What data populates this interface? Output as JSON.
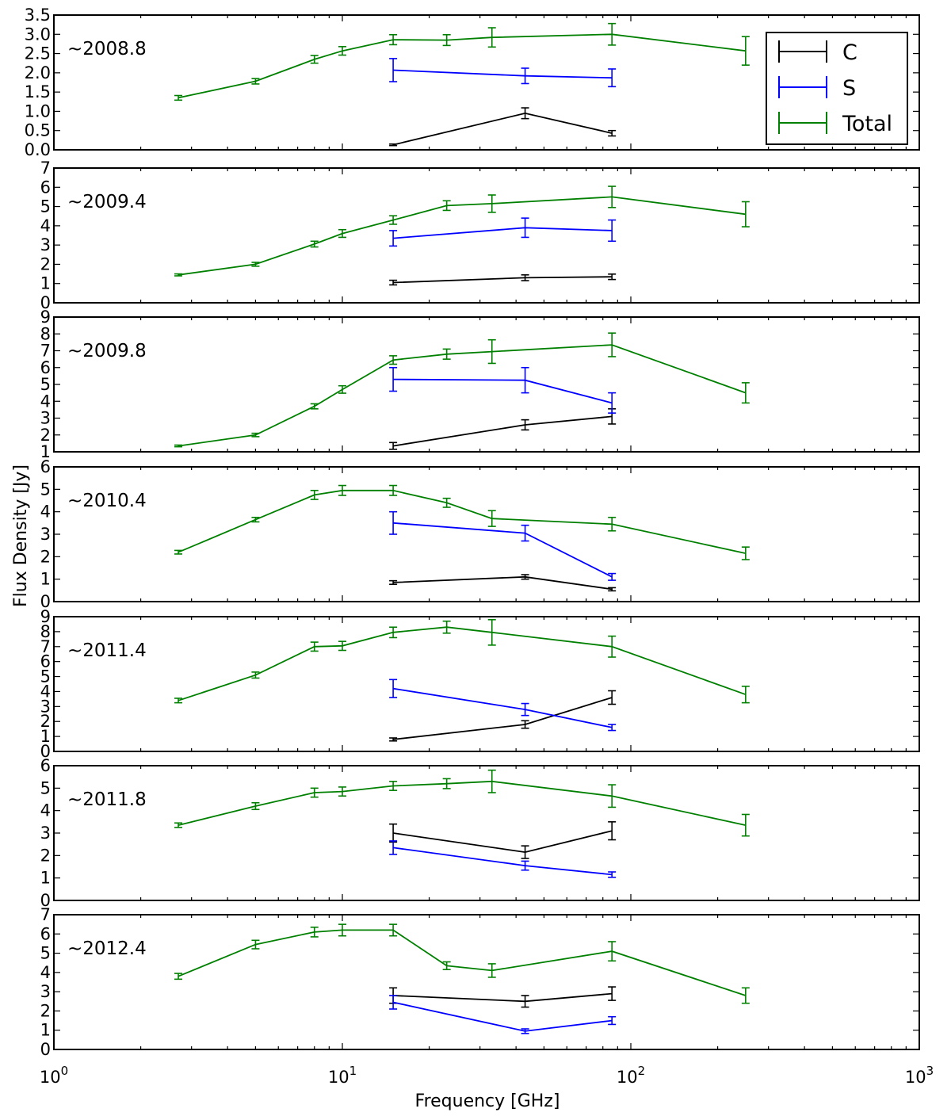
{
  "chart_data": {
    "type": "line",
    "xlabel": "Frequency [GHz]",
    "ylabel": "Flux Density [Jy]",
    "xscale": "log",
    "xlim": [
      1,
      1000
    ],
    "x_ticks": [
      {
        "value": 1,
        "base": "10",
        "exp": "0"
      },
      {
        "value": 10,
        "base": "10",
        "exp": "1"
      },
      {
        "value": 100,
        "base": "10",
        "exp": "2"
      },
      {
        "value": 1000,
        "base": "10",
        "exp": "3"
      }
    ],
    "legend": {
      "position": "top-right",
      "entries": [
        {
          "name": "C",
          "color": "#000000"
        },
        {
          "name": "S",
          "color": "#0000ff"
        },
        {
          "name": "Total",
          "color": "#008000"
        }
      ]
    },
    "colors": {
      "C": "#000000",
      "S": "#0000ff",
      "Total": "#008000"
    },
    "panels": [
      {
        "label": "~2008.8",
        "ylim": [
          0,
          3.5
        ],
        "yticks": [
          "0.0",
          "0.5",
          "1.0",
          "1.5",
          "2.0",
          "2.5",
          "3.0",
          "3.5"
        ],
        "series": [
          {
            "name": "Total",
            "x": [
              2.7,
              5,
              8,
              10,
              15,
              23,
              33,
              86,
              250
            ],
            "y": [
              1.35,
              1.78,
              2.35,
              2.57,
              2.86,
              2.85,
              2.92,
              3.0,
              2.57
            ],
            "err": [
              0.06,
              0.07,
              0.1,
              0.11,
              0.13,
              0.14,
              0.25,
              0.28,
              0.37
            ]
          },
          {
            "name": "S",
            "x": [
              15,
              43,
              86
            ],
            "y": [
              2.07,
              1.92,
              1.87
            ],
            "err": [
              0.3,
              0.2,
              0.23
            ]
          },
          {
            "name": "C",
            "x": [
              15,
              43,
              86
            ],
            "y": [
              0.13,
              0.95,
              0.43
            ],
            "err": [
              0.02,
              0.14,
              0.07
            ]
          }
        ]
      },
      {
        "label": "~2009.4",
        "ylim": [
          0,
          7
        ],
        "yticks": [
          "0",
          "1",
          "2",
          "3",
          "4",
          "5",
          "6",
          "7"
        ],
        "series": [
          {
            "name": "Total",
            "x": [
              2.7,
              5,
              8,
              10,
              15,
              23,
              33,
              86,
              250
            ],
            "y": [
              1.45,
              2.0,
              3.05,
              3.6,
              4.3,
              5.05,
              5.15,
              5.5,
              4.6
            ],
            "err": [
              0.05,
              0.1,
              0.15,
              0.2,
              0.22,
              0.25,
              0.45,
              0.55,
              0.65
            ]
          },
          {
            "name": "S",
            "x": [
              15,
              43,
              86
            ],
            "y": [
              3.35,
              3.9,
              3.75
            ],
            "err": [
              0.4,
              0.5,
              0.55
            ]
          },
          {
            "name": "C",
            "x": [
              15,
              43,
              86
            ],
            "y": [
              1.05,
              1.3,
              1.35
            ],
            "err": [
              0.12,
              0.15,
              0.14
            ]
          }
        ]
      },
      {
        "label": "~2009.8",
        "ylim": [
          1,
          9
        ],
        "yticks": [
          "1",
          "2",
          "3",
          "4",
          "5",
          "6",
          "7",
          "8",
          "9"
        ],
        "series": [
          {
            "name": "Total",
            "x": [
              2.7,
              5,
              8,
              10,
              15,
              23,
              33,
              86,
              250
            ],
            "y": [
              1.35,
              2.0,
              3.7,
              4.7,
              6.45,
              6.8,
              6.95,
              7.35,
              4.5
            ],
            "err": [
              0.05,
              0.1,
              0.15,
              0.22,
              0.25,
              0.3,
              0.7,
              0.7,
              0.6
            ]
          },
          {
            "name": "S",
            "x": [
              15,
              43,
              86
            ],
            "y": [
              5.3,
              5.25,
              3.9
            ],
            "err": [
              0.7,
              0.75,
              0.6
            ]
          },
          {
            "name": "C",
            "x": [
              15,
              43,
              86
            ],
            "y": [
              1.35,
              2.6,
              3.1
            ],
            "err": [
              0.2,
              0.3,
              0.45
            ]
          }
        ]
      },
      {
        "label": "~2010.4",
        "ylim": [
          0,
          6
        ],
        "yticks": [
          "0",
          "1",
          "2",
          "3",
          "4",
          "5",
          "6"
        ],
        "series": [
          {
            "name": "Total",
            "x": [
              2.7,
              5,
              8,
              10,
              15,
              23,
              33,
              86,
              250
            ],
            "y": [
              2.2,
              3.65,
              4.75,
              4.95,
              4.95,
              4.4,
              3.7,
              3.45,
              2.15
            ],
            "err": [
              0.08,
              0.1,
              0.2,
              0.22,
              0.22,
              0.2,
              0.35,
              0.3,
              0.28
            ]
          },
          {
            "name": "S",
            "x": [
              15,
              43,
              86
            ],
            "y": [
              3.5,
              3.05,
              1.1
            ],
            "err": [
              0.5,
              0.35,
              0.15
            ]
          },
          {
            "name": "C",
            "x": [
              15,
              43,
              86
            ],
            "y": [
              0.85,
              1.1,
              0.55
            ],
            "err": [
              0.08,
              0.1,
              0.07
            ]
          }
        ]
      },
      {
        "label": "~2011.4",
        "ylim": [
          0,
          9
        ],
        "yticks": [
          "0",
          "1",
          "2",
          "3",
          "4",
          "5",
          "6",
          "7",
          "8",
          "9"
        ],
        "series": [
          {
            "name": "Total",
            "x": [
              2.7,
              5,
              8,
              10,
              15,
              23,
              33,
              86,
              250
            ],
            "y": [
              3.4,
              5.1,
              7.0,
              7.05,
              7.95,
              8.3,
              7.95,
              7.0,
              3.8
            ],
            "err": [
              0.15,
              0.2,
              0.3,
              0.3,
              0.35,
              0.4,
              0.85,
              0.7,
              0.55
            ]
          },
          {
            "name": "S",
            "x": [
              15,
              43,
              86
            ],
            "y": [
              4.2,
              2.8,
              1.6
            ],
            "err": [
              0.6,
              0.4,
              0.2
            ]
          },
          {
            "name": "C",
            "x": [
              15,
              43,
              86
            ],
            "y": [
              0.8,
              1.8,
              3.6
            ],
            "err": [
              0.1,
              0.25,
              0.45
            ]
          }
        ]
      },
      {
        "label": "~2011.8",
        "ylim": [
          0,
          6
        ],
        "yticks": [
          "0",
          "1",
          "2",
          "3",
          "4",
          "5",
          "6"
        ],
        "series": [
          {
            "name": "Total",
            "x": [
              2.7,
              5,
              8,
              10,
              15,
              23,
              33,
              86,
              250
            ],
            "y": [
              3.35,
              4.2,
              4.8,
              4.85,
              5.1,
              5.2,
              5.3,
              4.65,
              3.35
            ],
            "err": [
              0.1,
              0.15,
              0.2,
              0.2,
              0.2,
              0.22,
              0.5,
              0.5,
              0.48
            ]
          },
          {
            "name": "S",
            "x": [
              15,
              43,
              86
            ],
            "y": [
              2.35,
              1.55,
              1.15
            ],
            "err": [
              0.3,
              0.2,
              0.12
            ]
          },
          {
            "name": "C",
            "x": [
              15,
              43,
              86
            ],
            "y": [
              3.0,
              2.15,
              3.1
            ],
            "err": [
              0.4,
              0.28,
              0.4
            ]
          }
        ]
      },
      {
        "label": "~2012.4",
        "ylim": [
          0,
          7
        ],
        "yticks": [
          "0",
          "1",
          "2",
          "3",
          "4",
          "5",
          "6",
          "7"
        ],
        "series": [
          {
            "name": "Total",
            "x": [
              2.7,
              5,
              8,
              10,
              15,
              23,
              33,
              86,
              250
            ],
            "y": [
              3.8,
              5.45,
              6.1,
              6.2,
              6.2,
              4.35,
              4.1,
              5.1,
              2.8
            ],
            "err": [
              0.15,
              0.22,
              0.25,
              0.3,
              0.3,
              0.2,
              0.35,
              0.5,
              0.4
            ]
          },
          {
            "name": "S",
            "x": [
              15,
              43,
              86
            ],
            "y": [
              2.45,
              0.95,
              1.5
            ],
            "err": [
              0.35,
              0.12,
              0.2
            ]
          },
          {
            "name": "C",
            "x": [
              15,
              43,
              86
            ],
            "y": [
              2.8,
              2.5,
              2.9
            ],
            "err": [
              0.4,
              0.3,
              0.35
            ]
          }
        ]
      }
    ]
  }
}
